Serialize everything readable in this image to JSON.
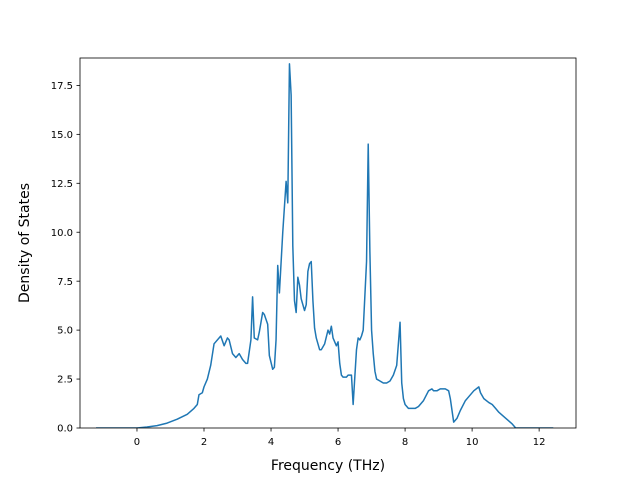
{
  "chart_data": {
    "type": "line",
    "title": "",
    "xlabel": "Frequency (THz)",
    "ylabel": "Density of States",
    "xlim": [
      -1.7,
      13.1
    ],
    "ylim": [
      0,
      18.9
    ],
    "xticks": [
      0,
      2,
      4,
      6,
      8,
      10,
      12
    ],
    "yticks": [
      0.0,
      2.5,
      5.0,
      7.5,
      10.0,
      12.5,
      15.0,
      17.5
    ],
    "grid": false,
    "legend": "none",
    "series": [
      {
        "color": "#1f77b4",
        "x": [
          -1.2,
          -0.6,
          0.0,
          0.3,
          0.6,
          0.9,
          1.2,
          1.5,
          1.7,
          1.8,
          1.85,
          1.95,
          2.0,
          2.1,
          2.2,
          2.3,
          2.5,
          2.6,
          2.7,
          2.75,
          2.85,
          2.95,
          3.05,
          3.15,
          3.25,
          3.3,
          3.4,
          3.45,
          3.5,
          3.6,
          3.65,
          3.75,
          3.8,
          3.9,
          3.95,
          4.05,
          4.1,
          4.15,
          4.2,
          4.25,
          4.35,
          4.45,
          4.5,
          4.55,
          4.6,
          4.65,
          4.7,
          4.75,
          4.8,
          4.85,
          4.9,
          5.0,
          5.05,
          5.1,
          5.15,
          5.2,
          5.25,
          5.3,
          5.35,
          5.45,
          5.5,
          5.6,
          5.7,
          5.75,
          5.8,
          5.85,
          5.95,
          6.0,
          6.05,
          6.1,
          6.15,
          6.25,
          6.3,
          6.4,
          6.45,
          6.5,
          6.55,
          6.6,
          6.65,
          6.7,
          6.75,
          6.85,
          6.9,
          6.95,
          7.0,
          7.05,
          7.1,
          7.15,
          7.25,
          7.35,
          7.45,
          7.55,
          7.65,
          7.75,
          7.85,
          7.9,
          7.95,
          8.0,
          8.1,
          8.2,
          8.3,
          8.4,
          8.55,
          8.7,
          8.8,
          8.85,
          8.95,
          9.05,
          9.2,
          9.3,
          9.35,
          9.45,
          9.55,
          9.65,
          9.8,
          9.9,
          10.05,
          10.2,
          10.25,
          10.35,
          10.5,
          10.6,
          10.7,
          10.8,
          11.0,
          11.2,
          11.3,
          11.5,
          11.8,
          12.1,
          12.4
        ],
        "y": [
          0.0,
          0.0,
          0.0,
          0.05,
          0.12,
          0.25,
          0.45,
          0.7,
          1.0,
          1.2,
          1.7,
          1.8,
          2.1,
          2.5,
          3.2,
          4.3,
          4.7,
          4.2,
          4.6,
          4.5,
          3.8,
          3.6,
          3.8,
          3.5,
          3.3,
          3.3,
          4.5,
          6.7,
          4.6,
          4.5,
          4.9,
          5.9,
          5.8,
          5.3,
          3.7,
          3.0,
          3.1,
          4.5,
          8.3,
          6.9,
          10.0,
          12.6,
          11.5,
          18.6,
          17.0,
          9.3,
          6.5,
          5.9,
          7.7,
          7.3,
          6.6,
          6.0,
          6.3,
          8.0,
          8.4,
          8.5,
          6.5,
          5.1,
          4.6,
          4.0,
          4.0,
          4.3,
          5.0,
          4.8,
          5.2,
          4.6,
          4.2,
          4.4,
          3.3,
          2.7,
          2.6,
          2.6,
          2.7,
          2.7,
          1.2,
          2.6,
          4.0,
          4.6,
          4.5,
          4.7,
          5.0,
          8.5,
          14.5,
          9.0,
          5.0,
          3.8,
          2.9,
          2.5,
          2.4,
          2.3,
          2.3,
          2.4,
          2.7,
          3.2,
          5.4,
          2.3,
          1.5,
          1.2,
          1.0,
          1.0,
          1.0,
          1.1,
          1.4,
          1.9,
          2.0,
          1.9,
          1.9,
          2.0,
          2.0,
          1.9,
          1.5,
          0.3,
          0.5,
          0.9,
          1.4,
          1.6,
          1.9,
          2.1,
          1.8,
          1.5,
          1.3,
          1.2,
          1.0,
          0.8,
          0.5,
          0.2,
          0.0,
          0.0,
          0.0,
          0.0,
          0.0
        ]
      }
    ]
  }
}
